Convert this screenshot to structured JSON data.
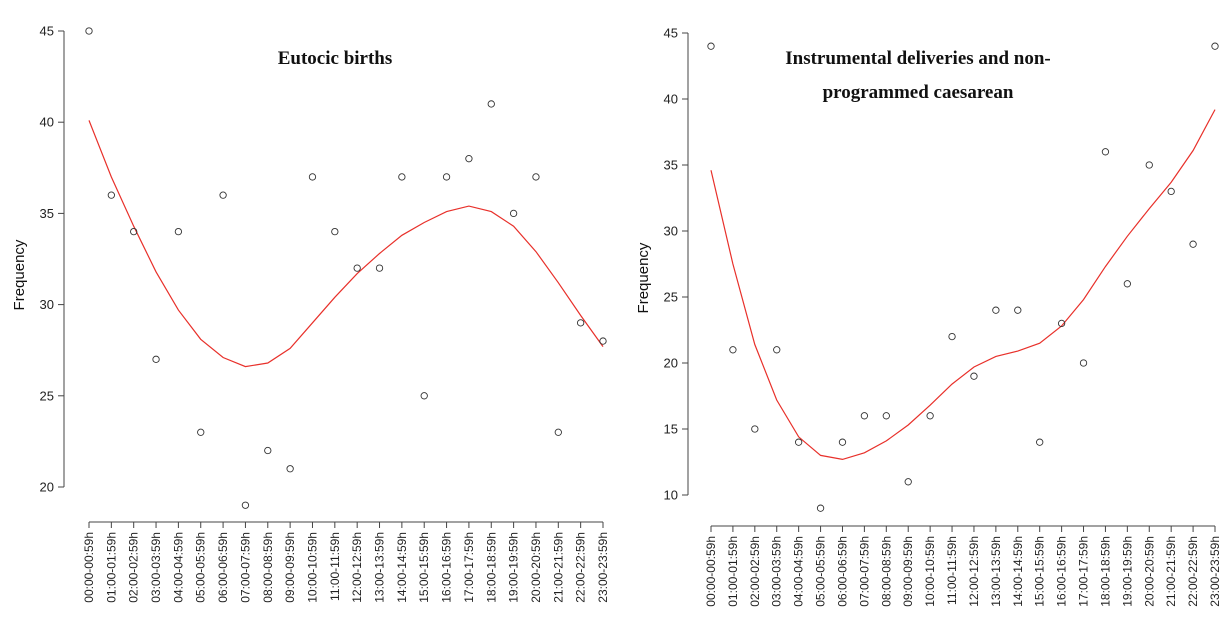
{
  "chart_data": [
    {
      "type": "scatter",
      "title_lines": [
        "Eutocic births"
      ],
      "ylabel": "Frequency",
      "xlabel": "",
      "categories": [
        "00:00-00:59h",
        "01:00-01:59h",
        "02:00-02:59h",
        "03:00-03:59h",
        "04:00-04:59h",
        "05:00-05:59h",
        "06:00-06:59h",
        "07:00-07:59h",
        "08:00-08:59h",
        "09:00-09:59h",
        "10:00-10:59h",
        "11:00-11:59h",
        "12:00-12:59h",
        "13:00-13:59h",
        "14:00-14:59h",
        "15:00-15:59h",
        "16:00-16:59h",
        "17:00-17:59h",
        "18:00-18:59h",
        "19:00-19:59h",
        "20:00-20:59h",
        "21:00-21:59h",
        "22:00-22:59h",
        "23:00-23:59h"
      ],
      "values": [
        45,
        36,
        34,
        27,
        34,
        23,
        36,
        19,
        22,
        21,
        37,
        34,
        32,
        32,
        37,
        25,
        37,
        38,
        41,
        35,
        37,
        23,
        29,
        28
      ],
      "fit": [
        40.1,
        37.0,
        34.3,
        31.8,
        29.7,
        28.1,
        27.1,
        26.6,
        26.8,
        27.6,
        29.0,
        30.4,
        31.7,
        32.8,
        33.8,
        34.5,
        35.1,
        35.4,
        35.1,
        34.3,
        32.9,
        31.2,
        29.4,
        27.7
      ],
      "yticks": [
        20,
        25,
        30,
        35,
        40,
        45
      ],
      "ylim": [
        17.5,
        46
      ],
      "colors": {
        "points": "#333333",
        "fit": "#e8302a"
      }
    },
    {
      "type": "scatter",
      "title_lines": [
        "Instrumental deliveries and non-",
        "programmed caesarean"
      ],
      "ylabel": "Frequency",
      "xlabel": "",
      "categories": [
        "00:00-00:59h",
        "01:00-01:59h",
        "02:00-02:59h",
        "03:00-03:59h",
        "04:00-04:59h",
        "05:00-05:59h",
        "06:00-06:59h",
        "07:00-07:59h",
        "08:00-08:59h",
        "09:00-09:59h",
        "10:00-10:59h",
        "11:00-11:59h",
        "12:00-12:59h",
        "13:00-13:59h",
        "14:00-14:59h",
        "15:00-15:59h",
        "16:00-16:59h",
        "17:00-17:59h",
        "18:00-18:59h",
        "19:00-19:59h",
        "20:00-20:59h",
        "21:00-21:59h",
        "22:00-22:59h",
        "23:00-23:59h"
      ],
      "values": [
        44,
        21,
        15,
        21,
        14,
        9,
        14,
        16,
        16,
        11,
        16,
        22,
        19,
        24,
        24,
        14,
        23,
        20,
        36,
        26,
        35,
        33,
        29,
        44
      ],
      "fit": [
        34.6,
        27.5,
        21.4,
        17.2,
        14.4,
        13.0,
        12.7,
        13.2,
        14.1,
        15.3,
        16.8,
        18.4,
        19.7,
        20.5,
        20.9,
        21.5,
        22.8,
        24.8,
        27.3,
        29.6,
        31.7,
        33.7,
        36.1,
        39.2
      ],
      "yticks": [
        10,
        15,
        20,
        25,
        30,
        35,
        40,
        45
      ],
      "ylim": [
        8,
        46
      ],
      "colors": {
        "points": "#333333",
        "fit": "#e8302a"
      }
    }
  ]
}
